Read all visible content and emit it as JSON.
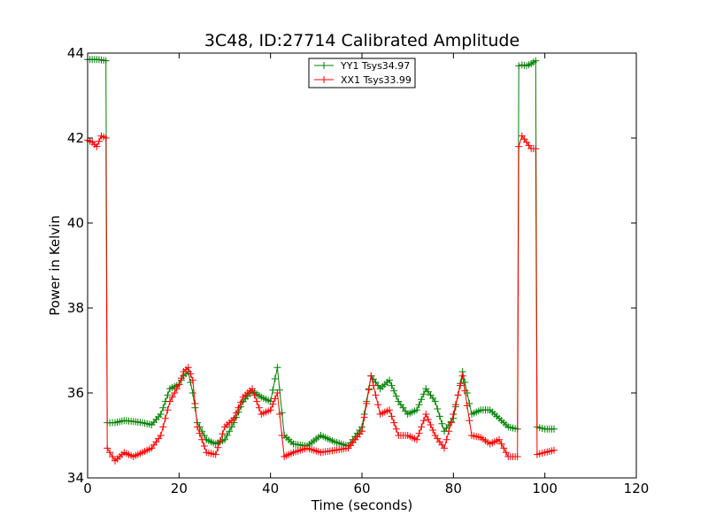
{
  "chart_data": {
    "type": "line",
    "title": "3C48, ID:27714 Calibrated Amplitude",
    "xlabel": "Time (seconds)",
    "ylabel": "Power in Kelvin",
    "xlim": [
      0,
      120
    ],
    "ylim": [
      34,
      44
    ],
    "xticks": [
      0,
      20,
      40,
      60,
      80,
      100,
      120
    ],
    "yticks": [
      34,
      36,
      38,
      40,
      42,
      44
    ],
    "grid": false,
    "legend_position": "top-center",
    "marker": "+",
    "series": [
      {
        "name": "YY1 Tsys34.97",
        "color": "#008000",
        "x": [
          0,
          1,
          2,
          3,
          4,
          4.3,
          6,
          8,
          10,
          12,
          14,
          16,
          18,
          20,
          21,
          22,
          23,
          24,
          26,
          28,
          30,
          32,
          34,
          36,
          38,
          40,
          41.5,
          43,
          45,
          48,
          51,
          54,
          57,
          60,
          62,
          64,
          66,
          68,
          70,
          72,
          74,
          76,
          78,
          80,
          82,
          84,
          86,
          88,
          90,
          92,
          94,
          94.3,
          95,
          96,
          97,
          98,
          98.3,
          100,
          102
        ],
        "y": [
          43.85,
          43.85,
          43.85,
          43.84,
          43.82,
          35.3,
          35.3,
          35.35,
          35.33,
          35.3,
          35.25,
          35.5,
          36.1,
          36.2,
          36.4,
          36.5,
          36.0,
          35.3,
          34.9,
          34.8,
          34.9,
          35.3,
          35.8,
          36.05,
          35.9,
          35.8,
          36.6,
          35.0,
          34.8,
          34.75,
          35.0,
          34.85,
          34.75,
          35.2,
          36.4,
          36.1,
          36.3,
          35.8,
          35.5,
          35.6,
          36.1,
          35.8,
          35.1,
          35.4,
          36.5,
          35.5,
          35.6,
          35.6,
          35.4,
          35.2,
          35.15,
          43.7,
          43.72,
          43.7,
          43.75,
          43.82,
          35.2,
          35.15,
          35.15
        ]
      },
      {
        "name": "XX1 Tsys33.99",
        "color": "#ff0000",
        "x": [
          0,
          1,
          2,
          3,
          4,
          4.3,
          6,
          8,
          10,
          12,
          14,
          16,
          18,
          20,
          21,
          22,
          23,
          24,
          26,
          28,
          30,
          32,
          34,
          36,
          38,
          40,
          41.5,
          43,
          45,
          48,
          51,
          54,
          57,
          60,
          62,
          64,
          66,
          68,
          70,
          72,
          74,
          76,
          78,
          80,
          82,
          84,
          86,
          88,
          90,
          92,
          94,
          94.3,
          95,
          96,
          97,
          98,
          98.3,
          100,
          102
        ],
        "y": [
          41.95,
          41.9,
          41.8,
          42.05,
          42.0,
          34.7,
          34.4,
          34.6,
          34.5,
          34.6,
          34.7,
          35.0,
          35.8,
          36.2,
          36.5,
          36.6,
          36.3,
          35.2,
          34.6,
          34.55,
          35.2,
          35.4,
          35.9,
          36.1,
          35.5,
          35.6,
          36.0,
          34.5,
          34.6,
          34.7,
          34.6,
          34.65,
          34.7,
          35.1,
          36.4,
          35.5,
          35.6,
          35.0,
          35.0,
          34.9,
          35.5,
          35.0,
          34.7,
          35.5,
          36.4,
          35.0,
          34.95,
          34.8,
          34.9,
          34.5,
          34.5,
          41.8,
          42.05,
          41.9,
          41.75,
          41.75,
          34.55,
          34.6,
          34.65
        ]
      }
    ]
  }
}
